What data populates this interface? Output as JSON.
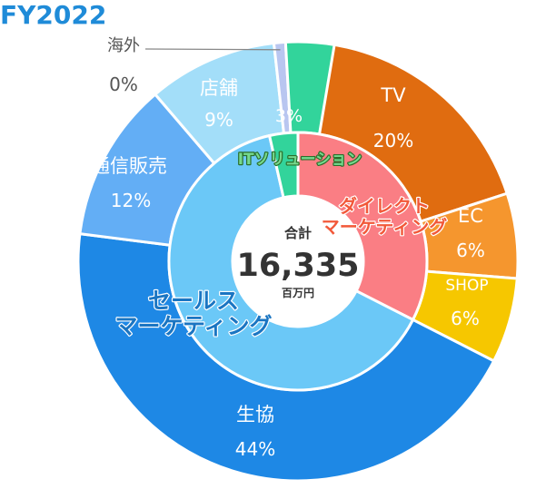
{
  "title": "FY2022",
  "center": {
    "label": "合計",
    "value": "16,335",
    "unit": "百万円"
  },
  "chart_data": {
    "type": "pie",
    "variant": "double-donut",
    "total": 16335,
    "total_unit": "百万円",
    "outer_ring": [
      {
        "name": "TV",
        "percent": 20,
        "label": "20%",
        "color": "#e06c10"
      },
      {
        "name": "EC",
        "percent": 6,
        "label": "6%",
        "color": "#f5962e"
      },
      {
        "name": "SHOP",
        "percent": 6,
        "label": "6%",
        "color": "#f6c700"
      },
      {
        "name": "生協",
        "percent": 44,
        "label": "44%",
        "color": "#1e88e5"
      },
      {
        "name": "通信販売",
        "percent": 12,
        "label": "12%",
        "color": "#63aef5"
      },
      {
        "name": "店舗",
        "percent": 9,
        "label": "9%",
        "color": "#a3def9"
      },
      {
        "name": "海外",
        "percent": 0,
        "label": "0%",
        "color": "#b9c6f0"
      },
      {
        "name": "ITソリューション",
        "percent": 3,
        "label": "3%",
        "color": "#32d49b"
      }
    ],
    "inner_ring": [
      {
        "name": "ダイレクト\nマーケティング",
        "percent": 32,
        "color": "#fa7e84"
      },
      {
        "name": "セールス\nマーケティング",
        "percent": 65,
        "color": "#6bc8f7"
      },
      {
        "name": "ITソリューション",
        "percent": 3,
        "color": "#32d49b"
      }
    ]
  }
}
